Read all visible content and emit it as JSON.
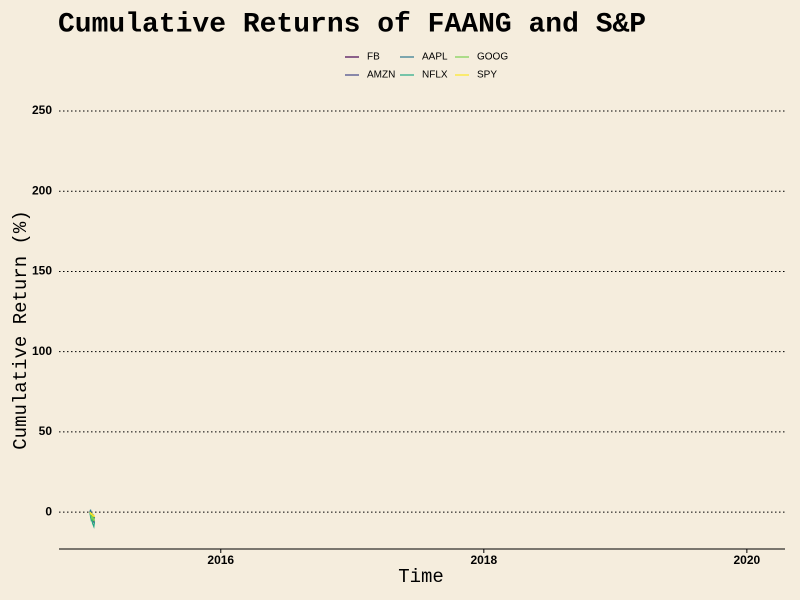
{
  "chart_data": {
    "type": "line",
    "title": "Cumulative Returns of FAANG and S&P",
    "x_label": "Time",
    "y_label": "Cumulative Return (%)",
    "x": [
      2015.005,
      2015.01,
      2015.015,
      2015.02,
      2015.025,
      2015.03,
      2015.035,
      2015.04
    ],
    "series": [
      {
        "name": "FB",
        "color": "#440154",
        "values": [
          0,
          -1.5,
          -3,
          -2,
          -4,
          -5,
          -3.5,
          -4
        ]
      },
      {
        "name": "AMZN",
        "color": "#414487",
        "values": [
          0,
          -2,
          -4,
          -3,
          -5.5,
          -6,
          -5,
          -7
        ]
      },
      {
        "name": "AAPL",
        "color": "#2a788e",
        "values": [
          0,
          1.5,
          -1,
          -2.5,
          -1,
          -3,
          -4.5,
          -3
        ]
      },
      {
        "name": "NFLX",
        "color": "#22a884",
        "values": [
          0,
          -3,
          -5,
          -4,
          -7,
          -8,
          -9,
          -6
        ]
      },
      {
        "name": "GOOG",
        "color": "#7ad151",
        "values": [
          0,
          -1,
          -2.5,
          -4,
          -3,
          -5,
          -4,
          -5.5
        ]
      },
      {
        "name": "SPY",
        "color": "#fde725",
        "values": [
          0,
          -0.5,
          -1.5,
          -1,
          -2,
          -2.5,
          -2,
          -3
        ]
      }
    ],
    "xlim": [
      2014.77,
      2020.29
    ],
    "xticks": [
      2016,
      2018,
      2020
    ],
    "ylim": [
      -23,
      260
    ],
    "yticks": [
      0,
      50,
      100,
      150,
      200,
      250
    ],
    "grid": true,
    "legend": "top"
  }
}
